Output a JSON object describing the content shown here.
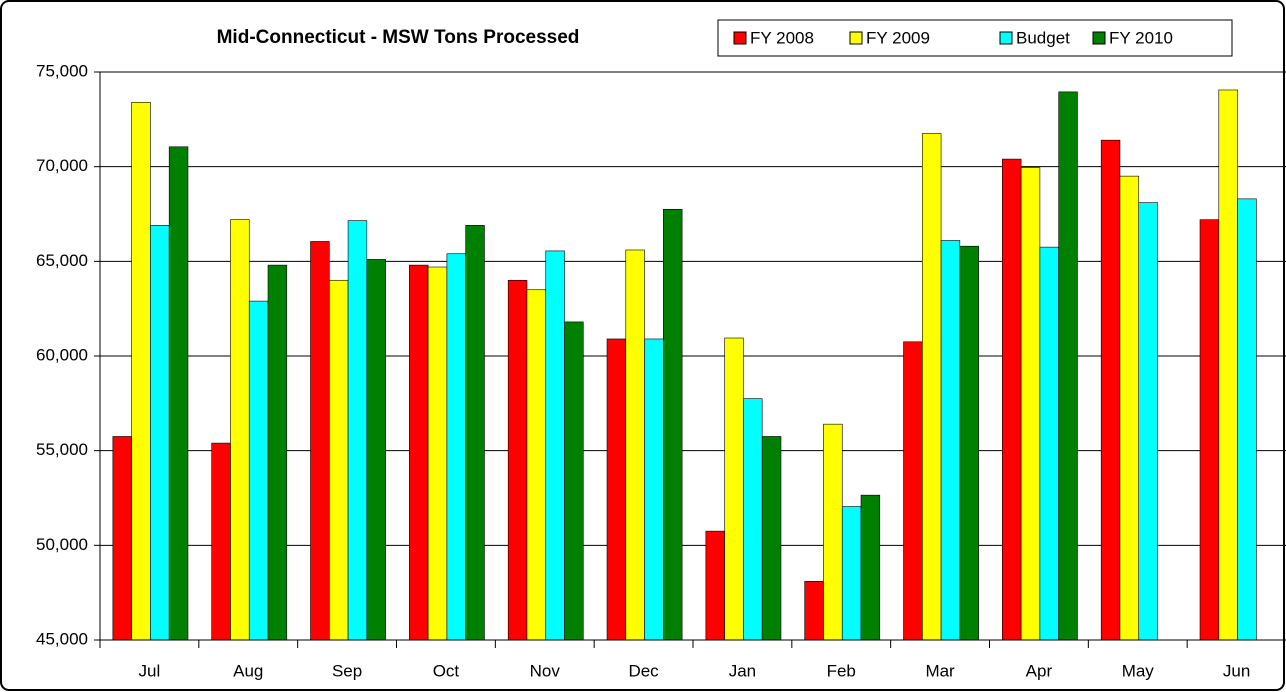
{
  "chart_data": {
    "type": "bar",
    "title": "Mid-Connecticut - MSW Tons Processed",
    "categories": [
      "Jul",
      "Aug",
      "Sep",
      "Oct",
      "Nov",
      "Dec",
      "Jan",
      "Feb",
      "Mar",
      "Apr",
      "May",
      "Jun"
    ],
    "series": [
      {
        "name": "FY 2008",
        "color": "#ff0000",
        "values": [
          55750,
          55400,
          66050,
          64800,
          64000,
          60900,
          50750,
          48100,
          60750,
          70400,
          71400,
          67200
        ]
      },
      {
        "name": "FY 2009",
        "color": "#ffff00",
        "values": [
          73400,
          67200,
          64000,
          64700,
          63500,
          65600,
          60950,
          56400,
          71750,
          69950,
          69500,
          74050
        ]
      },
      {
        "name": "Budget",
        "color": "#00ffff",
        "values": [
          66900,
          62900,
          67150,
          65400,
          65550,
          60900,
          57750,
          52050,
          66100,
          65750,
          68100,
          68300
        ]
      },
      {
        "name": "FY 2010",
        "color": "#008000",
        "values": [
          71050,
          64800,
          65100,
          66900,
          61800,
          67750,
          55750,
          52650,
          65800,
          73950,
          null,
          null
        ]
      }
    ],
    "ylim": [
      45000,
      75000
    ],
    "yticks": [
      {
        "value": 45000,
        "label": "45,000"
      },
      {
        "value": 50000,
        "label": "50,000"
      },
      {
        "value": 55000,
        "label": "55,000"
      },
      {
        "value": 60000,
        "label": "60,000"
      },
      {
        "value": 65000,
        "label": "65,000"
      },
      {
        "value": 70000,
        "label": "70,000"
      },
      {
        "value": 75000,
        "label": "75,000"
      }
    ],
    "grid": true
  }
}
